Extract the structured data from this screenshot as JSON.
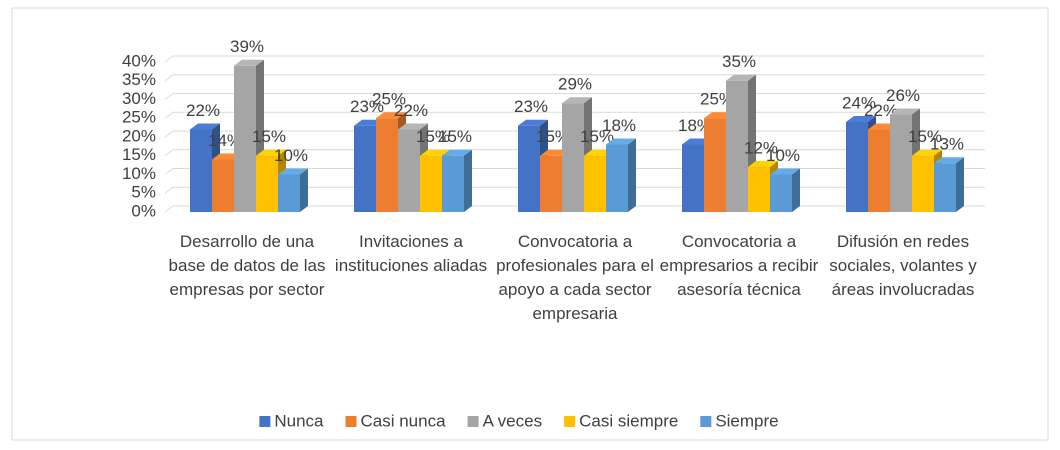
{
  "chart_data": {
    "type": "bar",
    "categories": [
      "Desarrollo de una base de datos de las empresas por sector",
      "Invitaciones a instituciones aliadas",
      "Convocatoria a profesionales para el apoyo a cada sector empresaria",
      "Convocatoria a empresarios a recibir asesoría técnica",
      "Difusión en redes sociales, volantes y áreas involucradas"
    ],
    "series": [
      {
        "name": "Nunca",
        "color": "#4472c4",
        "values": [
          22,
          23,
          23,
          18,
          24
        ],
        "value_labels": [
          "22%",
          "23%",
          "23%",
          "18%",
          "24%"
        ]
      },
      {
        "name": "Casi nunca",
        "color": "#ed7d31",
        "values": [
          14,
          25,
          15,
          25,
          22
        ],
        "value_labels": [
          "14%",
          "25%",
          "15%",
          "25%",
          "22%"
        ]
      },
      {
        "name": "A veces",
        "color": "#a5a5a5",
        "values": [
          39,
          22,
          29,
          35,
          26
        ],
        "value_labels": [
          "39%",
          "22%",
          "29%",
          "35%",
          "26%"
        ]
      },
      {
        "name": "Casi siempre",
        "color": "#ffc000",
        "values": [
          15,
          15,
          15,
          12,
          15
        ],
        "value_labels": [
          "15%",
          "15%",
          "15%",
          "12%",
          "15%"
        ]
      },
      {
        "name": "Siempre",
        "color": "#5b9bd5",
        "values": [
          10,
          15,
          18,
          10,
          13
        ],
        "value_labels": [
          "10%",
          "15%",
          "18%",
          "10%",
          "13%"
        ]
      }
    ],
    "ylim": [
      0,
      40
    ],
    "yticks": [
      {
        "value": 0,
        "label": "0%"
      },
      {
        "value": 5,
        "label": "5%"
      },
      {
        "value": 10,
        "label": "10%"
      },
      {
        "value": 15,
        "label": "15%"
      },
      {
        "value": 20,
        "label": "20%"
      },
      {
        "value": 25,
        "label": "25%"
      },
      {
        "value": 30,
        "label": "30%"
      },
      {
        "value": 35,
        "label": "35%"
      },
      {
        "value": 40,
        "label": "40%"
      }
    ],
    "grid": true,
    "legend": "bottom"
  }
}
